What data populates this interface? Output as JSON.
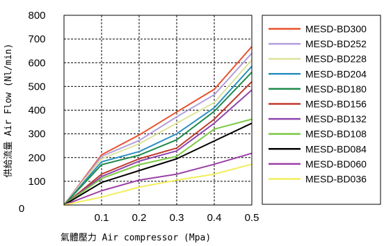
{
  "chart_data": {
    "type": "line",
    "xlabel": "氣體壓力 Air compressor (Mpa)",
    "ylabel": "供給流量 Air Flow (Nl/min)",
    "x": [
      0,
      0.1,
      0.2,
      0.3,
      0.4,
      0.5
    ],
    "x_tick_labels": [
      "0.1",
      "0.2",
      "0.3",
      "0.4",
      "0.5"
    ],
    "y_origin_label": "0",
    "xlim": [
      0,
      0.5
    ],
    "ylim": [
      0,
      800
    ],
    "y_ticks": [
      100,
      200,
      300,
      400,
      500,
      600,
      700,
      800
    ],
    "grid": true,
    "grid_style": "dashed",
    "legend_position": "right",
    "series": [
      {
        "name": "MESD-BD300",
        "color": "#e8502a",
        "values": [
          0,
          212,
          295,
          392,
          488,
          668
        ]
      },
      {
        "name": "MESD-BD252",
        "color": "#b39ddb",
        "values": [
          0,
          205,
          272,
          372,
          465,
          640
        ]
      },
      {
        "name": "MESD-BD228",
        "color": "#dde29a",
        "values": [
          0,
          195,
          258,
          345,
          432,
          612
        ]
      },
      {
        "name": "MESD-BD204",
        "color": "#2b8fc0",
        "values": [
          0,
          182,
          225,
          300,
          410,
          585
        ]
      },
      {
        "name": "MESD-BD180",
        "color": "#1e8a4a",
        "values": [
          0,
          170,
          210,
          275,
          395,
          560
        ]
      },
      {
        "name": "MESD-BD156",
        "color": "#c0392b",
        "values": [
          0,
          130,
          195,
          240,
          362,
          520
        ]
      },
      {
        "name": "MESD-BD132",
        "color": "#8e44ad",
        "values": [
          0,
          120,
          185,
          228,
          345,
          485
        ]
      },
      {
        "name": "MESD-BD108",
        "color": "#7ac943",
        "values": [
          0,
          112,
          170,
          205,
          320,
          362
        ]
      },
      {
        "name": "MESD-BD084",
        "color": "#000000",
        "values": [
          0,
          95,
          145,
          195,
          270,
          345
        ]
      },
      {
        "name": "MESD-BD060",
        "color": "#9b3fa8",
        "values": [
          0,
          60,
          105,
          130,
          172,
          218
        ]
      },
      {
        "name": "MESD-BD036",
        "color": "#f2ee5a",
        "values": [
          0,
          33,
          75,
          105,
          130,
          172
        ]
      }
    ]
  }
}
